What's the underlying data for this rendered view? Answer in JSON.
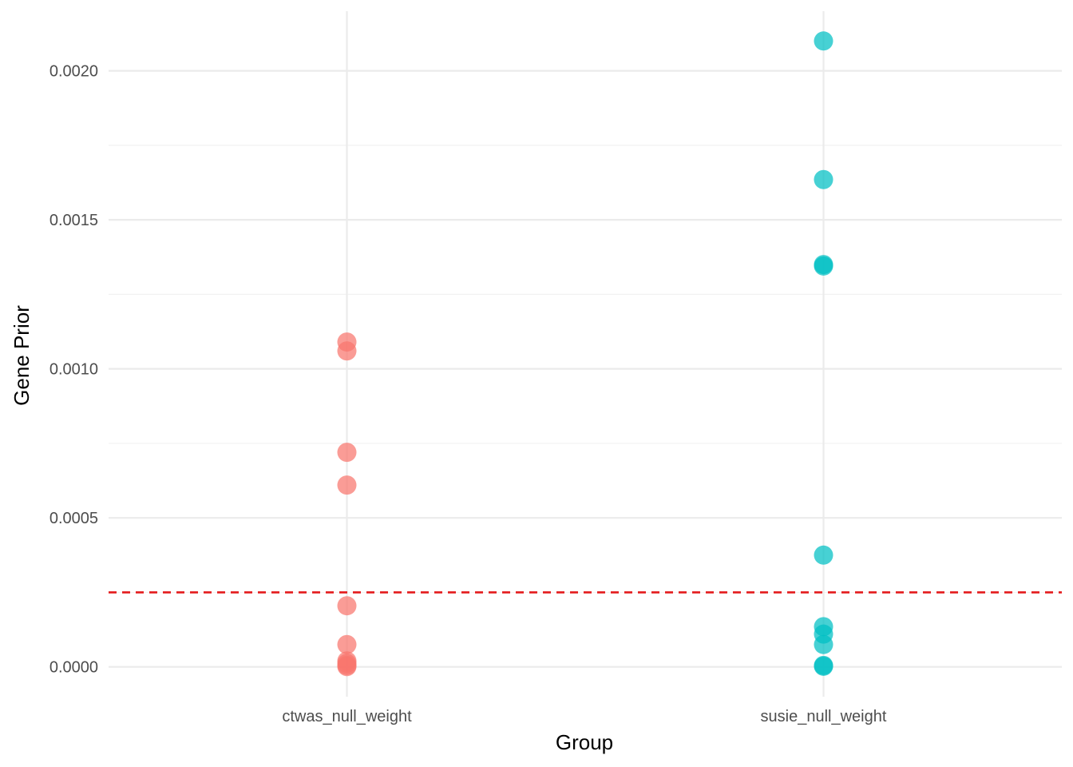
{
  "chart_data": {
    "type": "scatter",
    "xlabel": "Group",
    "ylabel": "Gene Prior",
    "categories": [
      "ctwas_null_weight",
      "susie_null_weight"
    ],
    "ylim": [
      -0.0001,
      0.0022
    ],
    "yticks": [
      0.0,
      0.0005,
      0.001,
      0.0015,
      0.002
    ],
    "ytick_labels": [
      "0.0000",
      "0.0005",
      "0.0010",
      "0.0015",
      "0.0020"
    ],
    "grid": true,
    "legend": "none",
    "reference_line": {
      "y": 0.00025,
      "style": "dashed",
      "color": "#e41a1c"
    },
    "series": [
      {
        "category": "ctwas_null_weight",
        "color": "#F8766D",
        "values": [
          0.00109,
          0.00106,
          0.00072,
          0.00061,
          0.000205,
          7.5e-05,
          2e-05,
          1.2e-05,
          5e-06,
          1e-06
        ]
      },
      {
        "category": "susie_null_weight",
        "color": "#00BFC4",
        "values": [
          0.0021,
          0.001635,
          0.00135,
          0.001345,
          0.000375,
          0.000135,
          0.00011,
          7.5e-05,
          5e-06,
          2e-06
        ]
      }
    ]
  }
}
